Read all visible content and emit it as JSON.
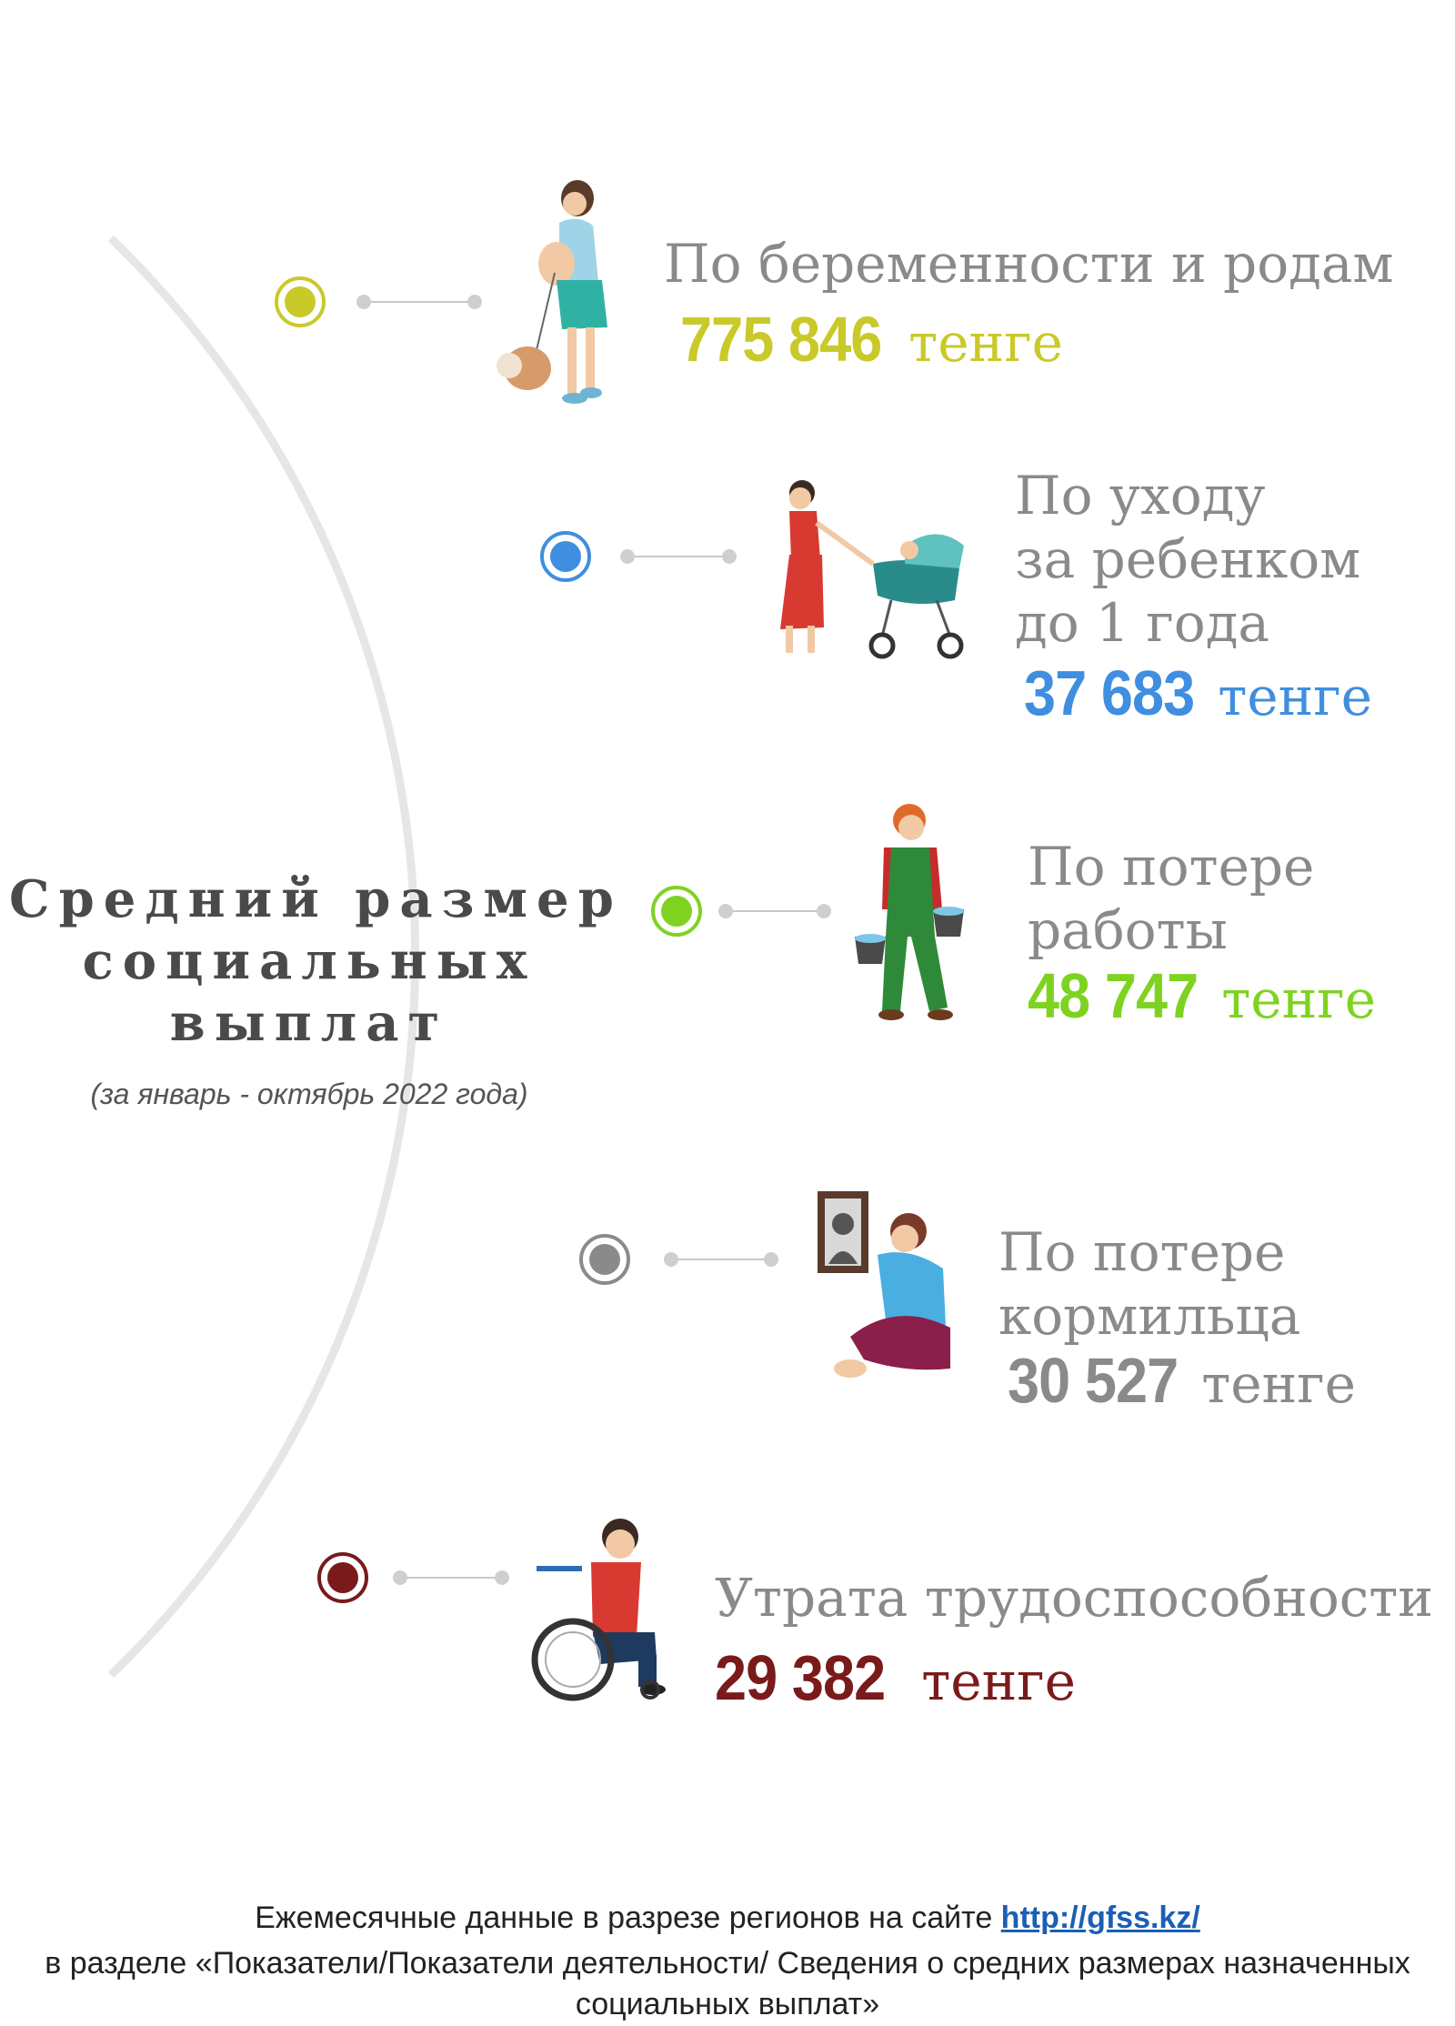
{
  "center": {
    "title_lines": [
      "Средний размер",
      "социальных",
      "выплат"
    ],
    "subtitle": "(за январь - октябрь 2022 года)"
  },
  "items": [
    {
      "label_lines": [
        "По беременности и родам"
      ],
      "amount": "775 846",
      "currency": "тенге",
      "color": "#c9c92a",
      "icon": "pregnant-woman-with-dog"
    },
    {
      "label_lines": [
        "По уходу",
        "за ребенком",
        "до 1 года"
      ],
      "amount": "37 683",
      "currency": "тенге",
      "color": "#3f8ee0",
      "icon": "woman-with-stroller"
    },
    {
      "label_lines": [
        "По потере",
        "работы"
      ],
      "amount": "48 747",
      "currency": "тенге",
      "color": "#7ed321",
      "icon": "worker-with-buckets"
    },
    {
      "label_lines": [
        "По потере",
        "кормильца"
      ],
      "amount": "30 527",
      "currency": "тенге",
      "color": "#8a8a8a",
      "icon": "grieving-person-with-portrait"
    },
    {
      "label_lines": [
        "Утрата трудоспособности"
      ],
      "amount": "29 382",
      "currency": "тенге",
      "color": "#7a1a1a",
      "icon": "man-in-wheelchair"
    }
  ],
  "footer": {
    "line1_text": "Ежемесячные данные в разрезе регионов на сайте ",
    "link_text": "http://gfss.kz/",
    "line2": "в разделе «Показатели/Показатели деятельности/ Сведения о средних размерах назначенных",
    "line3": "социальных выплат»"
  }
}
